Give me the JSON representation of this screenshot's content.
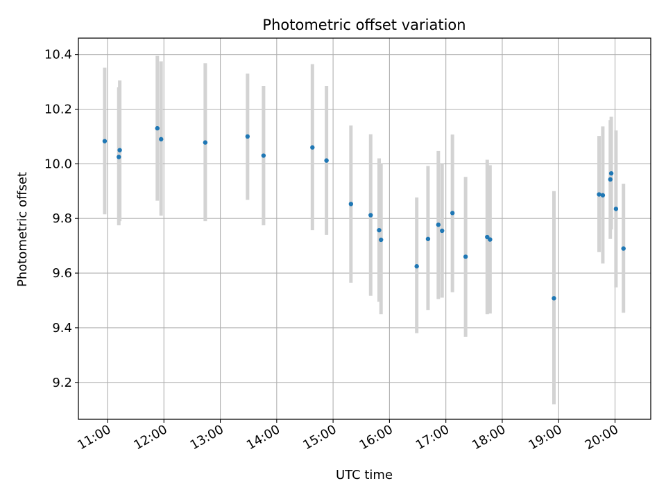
{
  "chart_data": {
    "type": "scatter",
    "title": "Photometric offset variation",
    "xlabel": "UTC time",
    "ylabel": "Photometric offset",
    "xlim": [
      "10:29",
      "20:38"
    ],
    "ylim": [
      9.065,
      10.46
    ],
    "x_ticks": [
      "11:00",
      "12:00",
      "13:00",
      "14:00",
      "15:00",
      "16:00",
      "17:00",
      "18:00",
      "19:00",
      "20:00"
    ],
    "y_ticks": [
      "9.2",
      "9.4",
      "9.6",
      "9.8",
      "10.0",
      "10.2",
      "10.4"
    ],
    "grid": true,
    "colors": {
      "point": "#1f77b4",
      "errorbar": "#d3d3d3",
      "grid": "#b0b0b0"
    },
    "points": [
      {
        "x": "10:57",
        "y": 10.083,
        "ylo": 9.815,
        "yhi": 10.352
      },
      {
        "x": "11:12",
        "y": 10.025,
        "ylo": 9.775,
        "yhi": 10.28
      },
      {
        "x": "11:13",
        "y": 10.05,
        "ylo": 9.79,
        "yhi": 10.305
      },
      {
        "x": "11:53",
        "y": 10.13,
        "ylo": 9.865,
        "yhi": 10.395
      },
      {
        "x": "11:57",
        "y": 10.09,
        "ylo": 9.81,
        "yhi": 10.375
      },
      {
        "x": "12:44",
        "y": 10.078,
        "ylo": 9.79,
        "yhi": 10.368
      },
      {
        "x": "13:29",
        "y": 10.1,
        "ylo": 9.868,
        "yhi": 10.33
      },
      {
        "x": "13:46",
        "y": 10.03,
        "ylo": 9.775,
        "yhi": 10.285
      },
      {
        "x": "14:38",
        "y": 10.06,
        "ylo": 9.757,
        "yhi": 10.365
      },
      {
        "x": "14:53",
        "y": 10.012,
        "ylo": 9.74,
        "yhi": 10.285
      },
      {
        "x": "15:19",
        "y": 9.853,
        "ylo": 9.565,
        "yhi": 10.14
      },
      {
        "x": "15:40",
        "y": 9.812,
        "ylo": 9.517,
        "yhi": 10.108
      },
      {
        "x": "15:49",
        "y": 9.757,
        "ylo": 9.495,
        "yhi": 10.02
      },
      {
        "x": "15:51",
        "y": 9.722,
        "ylo": 9.45,
        "yhi": 10.0
      },
      {
        "x": "16:29",
        "y": 9.625,
        "ylo": 9.38,
        "yhi": 9.877
      },
      {
        "x": "16:41",
        "y": 9.725,
        "ylo": 9.465,
        "yhi": 9.992
      },
      {
        "x": "16:52",
        "y": 9.777,
        "ylo": 9.505,
        "yhi": 10.047
      },
      {
        "x": "16:56",
        "y": 9.755,
        "ylo": 9.51,
        "yhi": 10.0
      },
      {
        "x": "17:07",
        "y": 9.82,
        "ylo": 9.53,
        "yhi": 10.107
      },
      {
        "x": "17:21",
        "y": 9.66,
        "ylo": 9.367,
        "yhi": 9.952
      },
      {
        "x": "17:44",
        "y": 9.732,
        "ylo": 9.45,
        "yhi": 10.015
      },
      {
        "x": "17:47",
        "y": 9.723,
        "ylo": 9.452,
        "yhi": 9.995
      },
      {
        "x": "18:55",
        "y": 9.508,
        "ylo": 9.12,
        "yhi": 9.9
      },
      {
        "x": "19:43",
        "y": 9.888,
        "ylo": 9.677,
        "yhi": 10.102
      },
      {
        "x": "19:47",
        "y": 9.885,
        "ylo": 9.635,
        "yhi": 10.137
      },
      {
        "x": "19:55",
        "y": 9.943,
        "ylo": 9.725,
        "yhi": 10.16
      },
      {
        "x": "19:56",
        "y": 9.965,
        "ylo": 9.76,
        "yhi": 10.172
      },
      {
        "x": "20:01",
        "y": 9.835,
        "ylo": 9.548,
        "yhi": 10.122
      },
      {
        "x": "20:09",
        "y": 9.69,
        "ylo": 9.455,
        "yhi": 9.927
      }
    ]
  }
}
